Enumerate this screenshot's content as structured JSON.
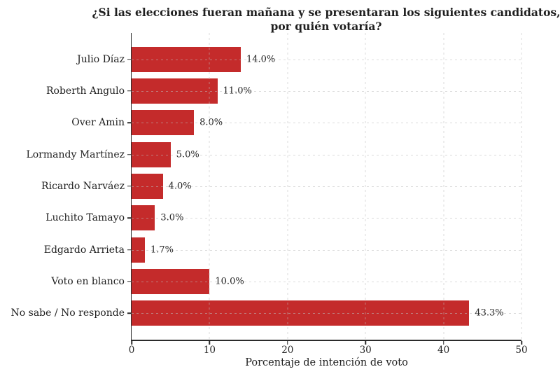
{
  "chart_data": {
    "type": "bar",
    "orientation": "horizontal",
    "title": "¿Si las elecciones fueran mañana y se presentaran los siguientes candidatos, por quién votaría?",
    "title_lines": [
      "¿Si las elecciones fueran mañana y se presentaran los siguientes candidatos,",
      "por quién votaría?"
    ],
    "categories": [
      "Julio Díaz",
      "Roberth Angulo",
      "Over Amin",
      "Lormandy Martínez",
      "Ricardo Narváez",
      "Luchito Tamayo",
      "Edgardo Arrieta",
      "Voto en blanco",
      "No sabe / No responde"
    ],
    "values": [
      14.0,
      11.0,
      8.0,
      5.0,
      4.0,
      3.0,
      1.7,
      10.0,
      43.3
    ],
    "value_labels": [
      "14.0%",
      "11.0%",
      "8.0%",
      "5.0%",
      "4.0%",
      "3.0%",
      "1.7%",
      "10.0%",
      "43.3%"
    ],
    "xlabel": "Porcentaje de intención de voto",
    "xlim": [
      0,
      50
    ],
    "xticks": [
      0,
      10,
      20,
      30,
      40,
      50
    ],
    "grid": true,
    "legend": false,
    "bar_color": "#c42b2b",
    "grid_color": "#bdbdbd",
    "axis_color": "#2b2b2b",
    "text_color": "#262626"
  }
}
